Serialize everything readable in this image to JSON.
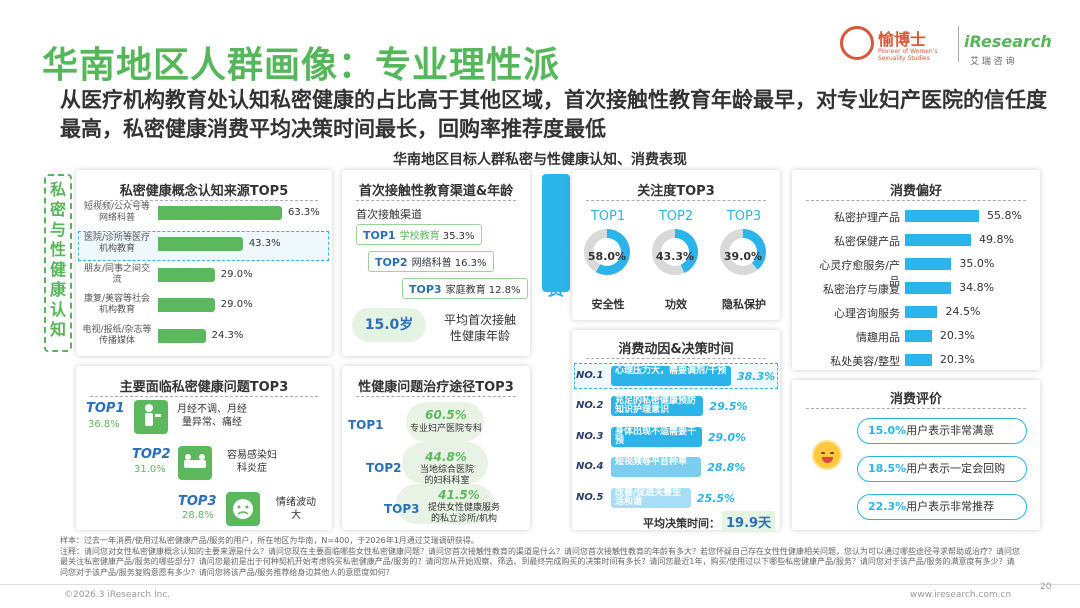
{
  "header": {
    "title": "华南地区人群画像：专业理性派",
    "subtitle": "从医疗机构教育处认知私密健康的占比高于其他区域，首次接触性教育年龄最早，对专业妇产医院的信任度最高，私密健康消费平均决策时间最长，回购率推荐度最低",
    "logo_cn": "愉博士",
    "logo_tagline": "Pioneer of Women's Sexuality Studies",
    "logo_ir": "iResearch",
    "logo_ir_cn": "艾 瑞 咨 询"
  },
  "chart_title": "华南地区目标人群私密与性健康认知、消费表现",
  "side_labels": {
    "left": [
      "私",
      "密",
      "与",
      "性",
      "健",
      "康",
      "认",
      "知"
    ],
    "mid": [
      "私",
      "密",
      "健",
      "康",
      "消",
      "费"
    ]
  },
  "sources": {
    "title": "私密健康概念认知来源TOP5",
    "items": [
      {
        "label": "短视频/公众号等网络科普",
        "value": "63.3%",
        "pct": 63.3
      },
      {
        "label": "医院/诊所等医疗机构教育",
        "value": "43.3%",
        "pct": 43.3
      },
      {
        "label": "朋友/同事之间交流",
        "value": "29.0%",
        "pct": 29.0
      },
      {
        "label": "康复/美容等社会机构教育",
        "value": "29.0%",
        "pct": 29.0
      },
      {
        "label": "电视/报纸/杂志等传播媒体",
        "value": "24.3%",
        "pct": 24.3
      }
    ]
  },
  "first_edu": {
    "title": "首次接触性教育渠道&年龄",
    "channel_label": "首次接触渠道",
    "items": [
      {
        "rank": "TOP1",
        "name": "学校教育",
        "value": "35.3%"
      },
      {
        "rank": "TOP2",
        "name": "网络科普",
        "value": "16.3%"
      },
      {
        "rank": "TOP3",
        "name": "家庭教育",
        "value": "12.8%"
      }
    ],
    "age": "15.0岁",
    "age_label": "平均首次接触性健康年龄"
  },
  "attention": {
    "title": "关注度TOP3",
    "items": [
      {
        "rank": "TOP1",
        "value": "58.0%",
        "pct": 58.0,
        "label": "安全性"
      },
      {
        "rank": "TOP2",
        "value": "43.3%",
        "pct": 43.3,
        "label": "功效"
      },
      {
        "rank": "TOP3",
        "value": "39.0%",
        "pct": 39.0,
        "label": "隐私保护"
      }
    ]
  },
  "motive": {
    "title": "消费动因&决策时间",
    "items": [
      {
        "no": "NO.1",
        "text": "心理压力大，需要调剂/干预",
        "value": "38.3%",
        "pct": 38.3
      },
      {
        "no": "NO.2",
        "text": "充足的私密健康预防知识护理意识",
        "value": "29.5%",
        "pct": 29.5
      },
      {
        "no": "NO.3",
        "text": "身体出现不适需要干预",
        "value": "29.0%",
        "pct": 29.0
      },
      {
        "no": "NO.4",
        "text": "短视频等平台种草",
        "value": "28.8%",
        "pct": 28.8
      },
      {
        "no": "NO.5",
        "text": "改善/促进夫妻生活和谐",
        "value": "25.5%",
        "pct": 25.5
      }
    ],
    "avg_label": "平均决策时间：",
    "avg_value": "19.9天"
  },
  "preference": {
    "title": "消费偏好",
    "items": [
      {
        "label": "私密护理产品",
        "value": "55.8%",
        "pct": 55.8
      },
      {
        "label": "私密保健产品",
        "value": "49.8%",
        "pct": 49.8
      },
      {
        "label": "心灵疗愈服务/产品",
        "value": "35.0%",
        "pct": 35.0
      },
      {
        "label": "私密治疗与康复",
        "value": "34.8%",
        "pct": 34.8
      },
      {
        "label": "心理咨询服务",
        "value": "24.5%",
        "pct": 24.5
      },
      {
        "label": "情趣用品",
        "value": "20.3%",
        "pct": 20.3
      },
      {
        "label": "私处美容/整型",
        "value": "20.3%",
        "pct": 20.3
      }
    ]
  },
  "evaluation": {
    "title": "消费评价",
    "items": [
      {
        "value": "15.0%",
        "text": "用户表示非常满意"
      },
      {
        "value": "18.5%",
        "text": "用户表示一定会回购"
      },
      {
        "value": "22.3%",
        "text": "用户表示非常推荐"
      }
    ]
  },
  "problems": {
    "title": "主要面临私密健康问题TOP3",
    "items": [
      {
        "rank": "TOP1",
        "value": "36.8%",
        "text": "月经不调、月经量异常、痛经"
      },
      {
        "rank": "TOP2",
        "value": "31.0%",
        "text": "容易感染妇科炎症"
      },
      {
        "rank": "TOP3",
        "value": "28.8%",
        "text": "情绪波动大"
      }
    ]
  },
  "treatment": {
    "title": "性健康问题治疗途径TOP3",
    "items": [
      {
        "rank": "TOP1",
        "value": "60.5%",
        "text": "专业妇产医院专科"
      },
      {
        "rank": "TOP2",
        "value": "44.8%",
        "text": "当地综合医院的妇科科室"
      },
      {
        "rank": "TOP3",
        "value": "41.5%",
        "text": "提供女性健康服务的私立诊所/机构"
      }
    ]
  },
  "notes": {
    "sample": "样本：过去一年消费/使用过私密健康产品/服务的用户，所在地区为华南，N=400，于2026年1月通过艾瑞调研获得。",
    "note": "注释：请问您对女性私密健康概念认知的主要来源是什么？请问您现在主要面临哪些女性私密健康问题？请问您首次接触性教育的渠道是什么？请问您首次接触性教育的年龄有多大？若您怀疑自己存在女性性健康相关问题，您认为可以通过哪些途径寻求帮助或治疗？请问您最关注私密健康产品/服务的哪些部分？请问您最初是出于何种契机开始考虑购买私密健康产品/服务的？请问您从开始观察、筛选、到最终完成购买的决策时间有多长？请问您最近1年，购买/使用过以下哪些私密健康产品/服务？请问您对于该产品/服务的满意度有多少？请问您对于该产品/服务复购意愿有多少？请问您将该产品/服务推荐给身边其他人的意愿度如何？"
  },
  "footer": {
    "copyright": "©2026.3 iResearch Inc.",
    "url": "www.iresearch.com.cn",
    "page": "20"
  }
}
